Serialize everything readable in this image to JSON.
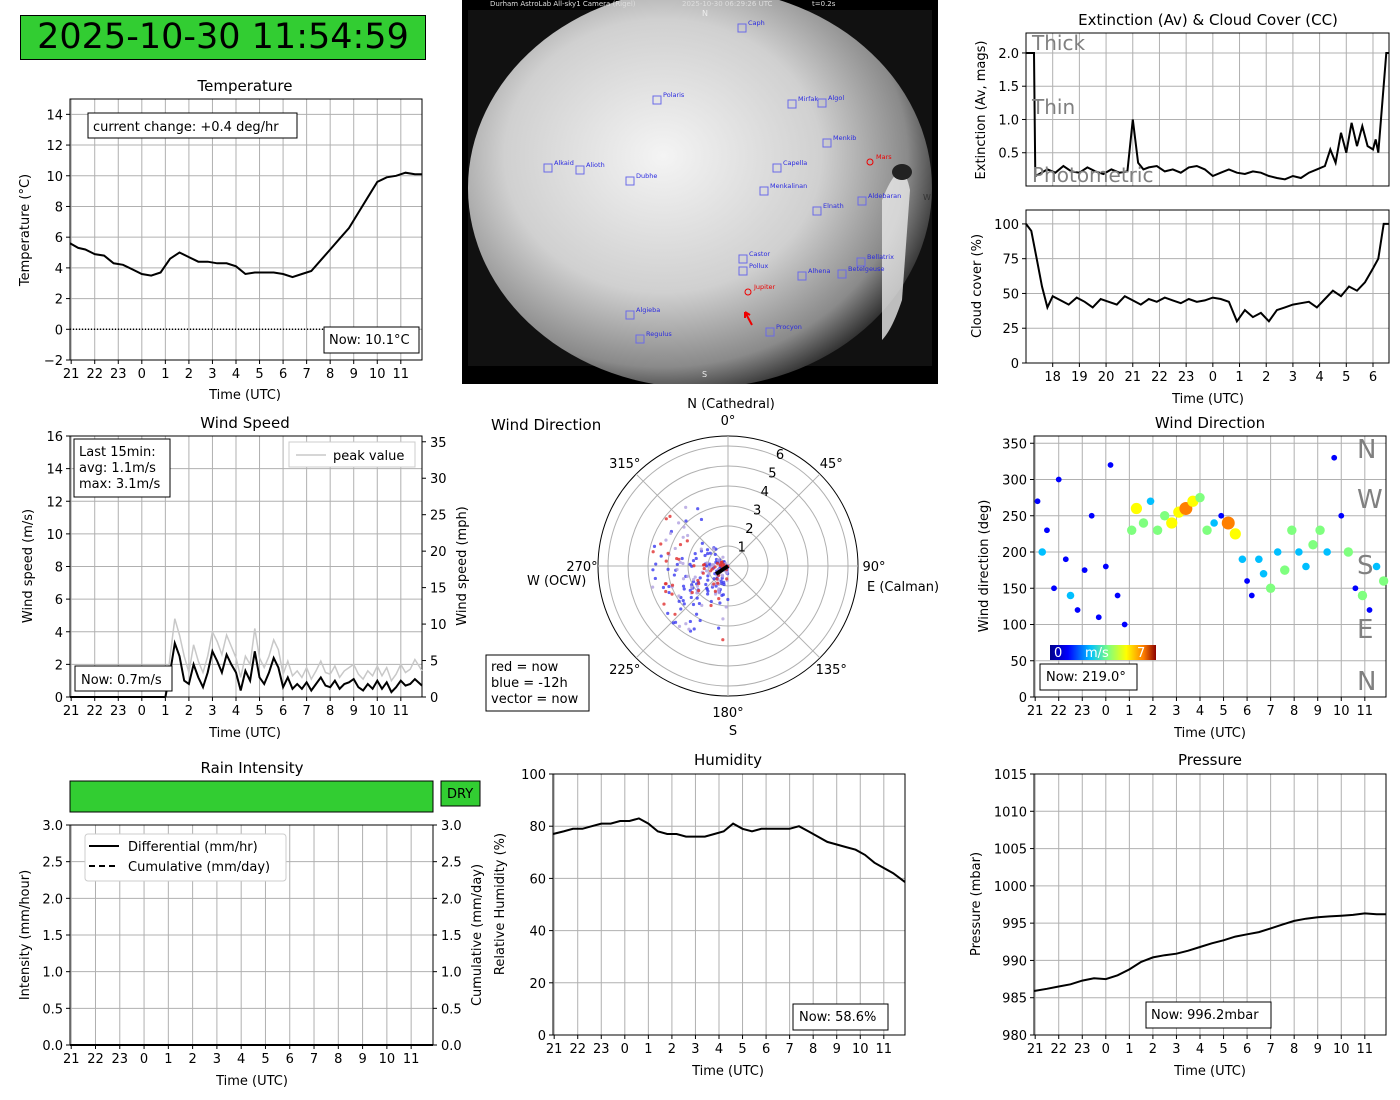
{
  "header": {
    "datetime": "2025-10-30 11:54:59"
  },
  "allsky": {
    "caption_title": "Durham AstroLab All-sky1 Camera (Rigel)",
    "caption_time": "2025-10-30 06:29:26 UTC",
    "caption_exposure": "t=0.2s",
    "north": "N",
    "south": "S",
    "west": "W",
    "stars": [
      "Caph",
      "Polaris",
      "Mirfak",
      "Algol",
      "Menkib",
      "Alkaid",
      "Alioth",
      "Dubhe",
      "Capella",
      "Menkalinan",
      "Elnath",
      "Aldebaran",
      "Castor",
      "Pollux",
      "Bellatrix",
      "Alhena",
      "Betelgeuse",
      "Algieba",
      "Regulus",
      "Procyon",
      "Jupiter",
      "Mars"
    ]
  },
  "temperature": {
    "title": "Temperature",
    "xlabel": "Time (UTC)",
    "ylabel": "Temperature (°C)",
    "change_note": "current change: +0.4 deg/hr",
    "now": "Now: 10.1°C"
  },
  "extinction": {
    "title": "Extinction (Av) & Cloud Cover (CC)",
    "ylabel": "Extinction (Av, mags)",
    "levels": [
      "Thick",
      "Thin",
      "Photometric"
    ]
  },
  "cloud": {
    "xlabel": "Time (UTC)",
    "ylabel": "Cloud cover (%)"
  },
  "wind_speed": {
    "title": "Wind Speed",
    "xlabel": "Time (UTC)",
    "ylabel": "Wind speed (m/s)",
    "ylabel_right": "Wind speed (mph)",
    "legend": "peak value",
    "summary": [
      "Last 15min:",
      "avg: 1.1m/s",
      "max: 3.1m/s"
    ],
    "now": "Now: 0.7m/s"
  },
  "wind_polar": {
    "title": "Wind Direction",
    "north": "N (Cathedral)",
    "east": "E (Calman)",
    "west": "W (OCW)",
    "south": "S",
    "legend": [
      "red = now",
      "blue = -12h",
      "vector = now"
    ]
  },
  "wind_dir": {
    "title": "Wind Direction",
    "xlabel": "Time (UTC)",
    "ylabel": "Wind direction (deg)",
    "compass": [
      "N",
      "W",
      "S",
      "E",
      "N"
    ],
    "colorbar": [
      "0",
      "m/s",
      "7"
    ],
    "now": "Now: 219.0°"
  },
  "rain": {
    "title": "Rain Intensity",
    "status": "DRY",
    "xlabel": "Time (UTC)",
    "ylabel": "Intensity (mm/hour)",
    "ylabel_right": "Cumulative (mm/day)",
    "legend": [
      "Differential (mm/hr)",
      "Cumulative (mm/day)"
    ]
  },
  "humidity": {
    "title": "Humidity",
    "xlabel": "Time (UTC)",
    "ylabel": "Relative Humidity (%)",
    "now": "Now: 58.6%"
  },
  "pressure": {
    "title": "Pressure",
    "xlabel": "Time (UTC)",
    "ylabel": "Pressure (mbar)",
    "now": "Now: 996.2mbar"
  },
  "colors": {
    "status_green": "#32cd32",
    "wind_cmap": [
      "#00008b",
      "#0000ff",
      "#00bfff",
      "#7fff7f",
      "#ffff00",
      "#ff7f00",
      "#8b0000"
    ]
  },
  "chart_data": [
    {
      "id": "temperature",
      "type": "line",
      "title": "Temperature",
      "x_ticks": [
        "21",
        "22",
        "23",
        "0",
        "1",
        "2",
        "3",
        "4",
        "5",
        "6",
        "7",
        "8",
        "9",
        "10",
        "11"
      ],
      "xlim": [
        20.95,
        35.9
      ],
      "ylim": [
        -2,
        15
      ],
      "y_ticks": [
        "−2",
        "0",
        "2",
        "4",
        "6",
        "8",
        "10",
        "12",
        "14"
      ],
      "x": [
        20.95,
        21.3,
        21.6,
        22.0,
        22.4,
        22.8,
        23.2,
        23.6,
        24.0,
        24.4,
        24.8,
        25.2,
        25.6,
        26.0,
        26.4,
        26.8,
        27.2,
        27.6,
        28.0,
        28.4,
        28.8,
        29.2,
        29.6,
        30.0,
        30.4,
        30.8,
        31.2,
        31.6,
        32.0,
        32.4,
        32.8,
        33.2,
        33.6,
        34.0,
        34.4,
        34.8,
        35.2,
        35.6,
        35.9
      ],
      "values": [
        5.6,
        5.3,
        5.2,
        4.9,
        4.8,
        4.3,
        4.2,
        3.9,
        3.6,
        3.5,
        3.7,
        4.6,
        5.0,
        4.7,
        4.4,
        4.4,
        4.3,
        4.3,
        4.1,
        3.6,
        3.7,
        3.7,
        3.7,
        3.6,
        3.4,
        3.6,
        3.8,
        4.5,
        5.2,
        5.9,
        6.6,
        7.6,
        8.6,
        9.6,
        9.9,
        10.0,
        10.2,
        10.1,
        10.1
      ],
      "zero_line": 0
    },
    {
      "id": "extinction",
      "type": "line",
      "ylim": [
        0,
        2.3
      ],
      "y_ticks": [
        "0.5",
        "1.0",
        "1.5",
        "2.0"
      ],
      "x_ticks": [
        "18",
        "19",
        "20",
        "21",
        "22",
        "23",
        "0",
        "1",
        "2",
        "3",
        "4",
        "5",
        "6"
      ],
      "xlim": [
        17.0,
        30.6
      ],
      "x": [
        17.0,
        17.3,
        17.35,
        17.5,
        17.8,
        18.1,
        18.4,
        18.7,
        19.0,
        19.3,
        19.6,
        19.9,
        20.2,
        20.5,
        20.8,
        21.0,
        21.2,
        21.4,
        21.6,
        21.9,
        22.2,
        22.5,
        22.8,
        23.1,
        23.4,
        23.7,
        24.0,
        24.3,
        24.6,
        24.9,
        25.2,
        25.5,
        25.8,
        26.1,
        26.4,
        26.7,
        27.0,
        27.3,
        27.6,
        27.9,
        28.2,
        28.4,
        28.6,
        28.8,
        29.0,
        29.2,
        29.4,
        29.6,
        29.8,
        30.0,
        30.1,
        30.2,
        30.5,
        30.6
      ],
      "values": [
        2.0,
        2.0,
        0.15,
        0.18,
        0.25,
        0.2,
        0.3,
        0.22,
        0.2,
        0.28,
        0.22,
        0.18,
        0.25,
        0.2,
        0.22,
        1.0,
        0.35,
        0.25,
        0.28,
        0.3,
        0.22,
        0.25,
        0.2,
        0.28,
        0.3,
        0.25,
        0.15,
        0.2,
        0.25,
        0.2,
        0.18,
        0.22,
        0.2,
        0.15,
        0.12,
        0.1,
        0.15,
        0.12,
        0.2,
        0.25,
        0.3,
        0.55,
        0.35,
        0.8,
        0.5,
        0.95,
        0.6,
        0.9,
        0.6,
        0.55,
        0.7,
        0.5,
        2.0,
        2.0
      ]
    },
    {
      "id": "cloud_cover",
      "type": "line",
      "ylim": [
        0,
        110
      ],
      "y_ticks": [
        "0",
        "25",
        "50",
        "75",
        "100"
      ],
      "x_ticks": [
        "18",
        "19",
        "20",
        "21",
        "22",
        "23",
        "0",
        "1",
        "2",
        "3",
        "4",
        "5",
        "6"
      ],
      "xlim": [
        17.0,
        30.6
      ],
      "x": [
        17.0,
        17.2,
        17.4,
        17.6,
        17.8,
        18.0,
        18.3,
        18.6,
        18.9,
        19.2,
        19.5,
        19.8,
        20.1,
        20.4,
        20.7,
        21.0,
        21.3,
        21.6,
        21.9,
        22.2,
        22.5,
        22.8,
        23.1,
        23.4,
        23.7,
        24.0,
        24.3,
        24.6,
        24.9,
        25.2,
        25.5,
        25.8,
        26.1,
        26.4,
        26.7,
        27.0,
        27.3,
        27.6,
        27.9,
        28.2,
        28.5,
        28.8,
        29.1,
        29.4,
        29.7,
        30.0,
        30.2,
        30.4,
        30.6
      ],
      "values": [
        100,
        95,
        75,
        55,
        40,
        48,
        45,
        42,
        47,
        44,
        40,
        46,
        44,
        42,
        48,
        45,
        42,
        46,
        44,
        47,
        45,
        43,
        46,
        44,
        45,
        47,
        46,
        44,
        30,
        38,
        33,
        36,
        30,
        38,
        40,
        42,
        43,
        44,
        40,
        46,
        52,
        48,
        55,
        52,
        58,
        68,
        75,
        100,
        100
      ]
    },
    {
      "id": "wind_speed",
      "type": "line",
      "x_ticks": [
        "21",
        "22",
        "23",
        "0",
        "1",
        "2",
        "3",
        "4",
        "5",
        "6",
        "7",
        "8",
        "9",
        "10",
        "11"
      ],
      "xlim": [
        20.95,
        35.9
      ],
      "ylim": [
        0,
        16
      ],
      "y_ticks": [
        "0",
        "2",
        "4",
        "6",
        "8",
        "10",
        "12",
        "14",
        "16"
      ],
      "y2_ticks": [
        "0",
        "5",
        "10",
        "15",
        "20",
        "25",
        "30",
        "35"
      ],
      "x": [
        25.0,
        25.2,
        25.4,
        25.6,
        25.8,
        26.0,
        26.2,
        26.4,
        26.6,
        26.8,
        27.0,
        27.2,
        27.4,
        27.6,
        27.8,
        28.0,
        28.2,
        28.4,
        28.6,
        28.8,
        29.0,
        29.2,
        29.4,
        29.6,
        29.8,
        30.0,
        30.2,
        30.4,
        30.6,
        30.8,
        31.0,
        31.2,
        31.4,
        31.6,
        31.8,
        32.0,
        32.2,
        32.4,
        32.6,
        32.8,
        33.0,
        33.2,
        33.4,
        33.6,
        33.8,
        34.0,
        34.2,
        34.4,
        34.6,
        34.8,
        35.0,
        35.2,
        35.4,
        35.6,
        35.9
      ],
      "values": [
        0,
        1.5,
        3.3,
        2.5,
        1.0,
        0.8,
        2.0,
        1.2,
        0.6,
        1.5,
        2.8,
        2.2,
        1.5,
        2.6,
        2.0,
        1.5,
        0.4,
        1.6,
        1.0,
        2.8,
        1.2,
        0.8,
        1.5,
        2.4,
        1.8,
        0.6,
        1.2,
        0.5,
        0.8,
        0.5,
        0.9,
        0.4,
        0.8,
        1.2,
        0.7,
        0.6,
        1.0,
        0.5,
        0.8,
        0.9,
        1.1,
        0.6,
        0.4,
        0.8,
        0.5,
        1.0,
        0.5,
        0.9,
        0.3,
        0.6,
        1.0,
        0.7,
        0.8,
        1.1,
        0.7
      ],
      "peak": [
        0,
        2.5,
        4.8,
        3.8,
        2.5,
        1.5,
        3.2,
        2.2,
        1.5,
        2.5,
        4.0,
        3.4,
        2.6,
        3.8,
        3.1,
        2.4,
        1.2,
        2.5,
        2.0,
        4.2,
        2.4,
        1.8,
        2.5,
        3.5,
        2.9,
        1.4,
        2.2,
        1.3,
        1.6,
        1.2,
        1.8,
        1.1,
        1.6,
        2.2,
        1.5,
        1.4,
        1.9,
        1.2,
        1.6,
        1.8,
        2.0,
        1.4,
        1.1,
        1.6,
        1.3,
        1.9,
        1.3,
        1.8,
        1.0,
        1.4,
        2.0,
        1.5,
        1.7,
        2.3,
        1.6
      ]
    },
    {
      "id": "wind_polar",
      "type": "scatter",
      "r_ticks": [
        "1",
        "2",
        "3",
        "4",
        "5",
        "6"
      ],
      "angle_ticks": [
        "0°",
        "45°",
        "90°",
        "135°",
        "180°",
        "225°",
        "270°",
        "315°"
      ]
    },
    {
      "id": "wind_direction",
      "type": "scatter",
      "x_ticks": [
        "21",
        "22",
        "23",
        "0",
        "1",
        "2",
        "3",
        "4",
        "5",
        "6",
        "7",
        "8",
        "9",
        "10",
        "11"
      ],
      "xlim": [
        20.95,
        35.9
      ],
      "ylim": [
        0,
        360
      ],
      "y_ticks": [
        "0",
        "50",
        "100",
        "150",
        "200",
        "250",
        "300",
        "350"
      ],
      "points": [
        [
          21.1,
          270,
          1
        ],
        [
          21.3,
          200,
          2
        ],
        [
          21.5,
          230,
          1
        ],
        [
          21.8,
          150,
          1
        ],
        [
          22.0,
          300,
          1
        ],
        [
          22.3,
          190,
          1
        ],
        [
          22.5,
          140,
          2
        ],
        [
          22.8,
          120,
          1
        ],
        [
          23.1,
          175,
          1
        ],
        [
          23.4,
          250,
          1
        ],
        [
          23.7,
          110,
          1
        ],
        [
          24.0,
          180,
          1
        ],
        [
          24.2,
          320,
          1
        ],
        [
          24.5,
          140,
          1
        ],
        [
          24.8,
          100,
          1
        ],
        [
          25.1,
          230,
          3
        ],
        [
          25.3,
          260,
          4
        ],
        [
          25.6,
          240,
          3
        ],
        [
          25.9,
          270,
          2
        ],
        [
          26.2,
          230,
          3
        ],
        [
          26.5,
          250,
          3
        ],
        [
          26.8,
          240,
          4
        ],
        [
          27.1,
          255,
          4
        ],
        [
          27.4,
          260,
          5
        ],
        [
          27.7,
          270,
          4
        ],
        [
          28.0,
          275,
          3
        ],
        [
          28.3,
          230,
          3
        ],
        [
          28.6,
          240,
          2
        ],
        [
          28.9,
          250,
          1
        ],
        [
          29.2,
          240,
          5
        ],
        [
          29.5,
          225,
          4
        ],
        [
          29.8,
          190,
          2
        ],
        [
          30.0,
          160,
          1
        ],
        [
          30.2,
          140,
          1
        ],
        [
          30.5,
          190,
          2
        ],
        [
          30.7,
          170,
          2
        ],
        [
          31.0,
          150,
          3
        ],
        [
          31.3,
          200,
          2
        ],
        [
          31.6,
          175,
          3
        ],
        [
          31.9,
          230,
          3
        ],
        [
          32.2,
          200,
          2
        ],
        [
          32.5,
          180,
          2
        ],
        [
          32.8,
          210,
          3
        ],
        [
          33.1,
          230,
          3
        ],
        [
          33.4,
          200,
          2
        ],
        [
          33.7,
          330,
          1
        ],
        [
          34.0,
          250,
          1
        ],
        [
          34.3,
          200,
          3
        ],
        [
          34.6,
          150,
          1
        ],
        [
          34.9,
          140,
          3
        ],
        [
          35.2,
          120,
          1
        ],
        [
          35.5,
          180,
          2
        ],
        [
          35.8,
          160,
          3
        ]
      ]
    },
    {
      "id": "rain",
      "type": "line",
      "x_ticks": [
        "21",
        "22",
        "23",
        "0",
        "1",
        "2",
        "3",
        "4",
        "5",
        "6",
        "7",
        "8",
        "9",
        "10",
        "11"
      ],
      "xlim": [
        20.95,
        35.9
      ],
      "ylim": [
        0,
        3
      ],
      "y_ticks": [
        "0.0",
        "0.5",
        "1.0",
        "1.5",
        "2.0",
        "2.5",
        "3.0"
      ],
      "x": [
        20.95,
        35.9
      ],
      "differential": [
        0,
        0
      ],
      "cumulative": [
        0,
        0
      ]
    },
    {
      "id": "humidity",
      "type": "line",
      "x_ticks": [
        "21",
        "22",
        "23",
        "0",
        "1",
        "2",
        "3",
        "4",
        "5",
        "6",
        "7",
        "8",
        "9",
        "10",
        "11"
      ],
      "xlim": [
        20.95,
        35.9
      ],
      "ylim": [
        0,
        100
      ],
      "y_ticks": [
        "0",
        "20",
        "40",
        "60",
        "80",
        "100"
      ],
      "x": [
        20.95,
        21.4,
        21.8,
        22.2,
        22.6,
        23.0,
        23.4,
        23.8,
        24.2,
        24.6,
        25.0,
        25.4,
        25.8,
        26.2,
        26.6,
        27.0,
        27.4,
        27.8,
        28.2,
        28.6,
        29.0,
        29.4,
        29.8,
        30.2,
        30.6,
        31.0,
        31.4,
        31.8,
        32.2,
        32.6,
        33.0,
        33.4,
        33.8,
        34.2,
        34.6,
        35.0,
        35.4,
        35.9
      ],
      "values": [
        77,
        78,
        79,
        79,
        80,
        81,
        81,
        82,
        82,
        83,
        81,
        78,
        77,
        77,
        76,
        76,
        76,
        77,
        78,
        81,
        79,
        78,
        79,
        79,
        79,
        79,
        80,
        78,
        76,
        74,
        73,
        72,
        71,
        69,
        66,
        64,
        62,
        58.6
      ]
    },
    {
      "id": "pressure",
      "type": "line",
      "x_ticks": [
        "21",
        "22",
        "23",
        "0",
        "1",
        "2",
        "3",
        "4",
        "5",
        "6",
        "7",
        "8",
        "9",
        "10",
        "11"
      ],
      "xlim": [
        20.95,
        35.9
      ],
      "ylim": [
        980,
        1015
      ],
      "y_ticks": [
        "980",
        "985",
        "990",
        "995",
        "1000",
        "1005",
        "1010",
        "1015"
      ],
      "x": [
        20.95,
        21.5,
        22.0,
        22.5,
        23.0,
        23.5,
        24.0,
        24.5,
        25.0,
        25.5,
        26.0,
        26.5,
        27.0,
        27.5,
        28.0,
        28.5,
        29.0,
        29.5,
        30.0,
        30.5,
        31.0,
        31.5,
        32.0,
        32.5,
        33.0,
        33.5,
        34.0,
        34.5,
        35.0,
        35.5,
        35.9
      ],
      "values": [
        985.9,
        986.2,
        986.5,
        986.8,
        987.3,
        987.6,
        987.5,
        988.0,
        988.8,
        989.8,
        990.4,
        990.7,
        990.9,
        991.3,
        991.8,
        992.3,
        992.7,
        993.2,
        993.5,
        993.8,
        994.3,
        994.8,
        995.3,
        995.6,
        995.8,
        995.9,
        996.0,
        996.1,
        996.3,
        996.2,
        996.2
      ]
    }
  ]
}
